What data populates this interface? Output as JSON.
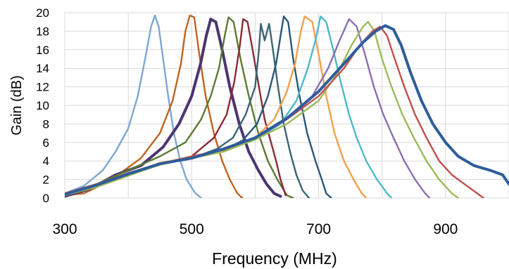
{
  "chart_data": {
    "type": "line",
    "xlabel": "Frequency (MHz)",
    "ylabel": "Gain (dB)",
    "xlim": [
      300,
      1000
    ],
    "ylim": [
      0,
      20
    ],
    "x_ticks": [
      300,
      500,
      700,
      900
    ],
    "y_ticks": [
      0,
      2,
      4,
      6,
      8,
      10,
      12,
      14,
      16,
      18,
      20
    ],
    "grid": "vertical and horizontal, light gray",
    "legend": "none",
    "series": [
      {
        "color": "#7fa6d1",
        "width": 2.4,
        "points": [
          [
            300,
            0.5
          ],
          [
            330,
            1.3
          ],
          [
            360,
            3.0
          ],
          [
            380,
            5.0
          ],
          [
            400,
            7.5
          ],
          [
            415,
            11.0
          ],
          [
            428,
            15.5
          ],
          [
            436,
            18.5
          ],
          [
            442,
            19.7
          ],
          [
            448,
            18.5
          ],
          [
            455,
            15.0
          ],
          [
            463,
            11.0
          ],
          [
            472,
            7.0
          ],
          [
            482,
            4.0
          ],
          [
            492,
            2.0
          ],
          [
            505,
            0.6
          ],
          [
            515,
            0
          ]
        ]
      },
      {
        "color": "#c0631f",
        "width": 2.4,
        "points": [
          [
            300,
            0.3
          ],
          [
            330,
            0.5
          ],
          [
            360,
            1.5
          ],
          [
            390,
            2.8
          ],
          [
            420,
            4.3
          ],
          [
            450,
            7.0
          ],
          [
            470,
            10.5
          ],
          [
            483,
            14.5
          ],
          [
            490,
            18.0
          ],
          [
            497,
            19.7
          ],
          [
            504,
            19.5
          ],
          [
            512,
            15.5
          ],
          [
            522,
            11.0
          ],
          [
            535,
            7.0
          ],
          [
            548,
            4.0
          ],
          [
            560,
            2.0
          ],
          [
            572,
            0.5
          ],
          [
            580,
            0
          ]
        ]
      },
      {
        "color": "#4b3571",
        "width": 4.0,
        "points": [
          [
            300,
            0.2
          ],
          [
            340,
            1.0
          ],
          [
            380,
            2.5
          ],
          [
            420,
            3.5
          ],
          [
            455,
            5.5
          ],
          [
            480,
            8.0
          ],
          [
            500,
            11.0
          ],
          [
            514,
            14.5
          ],
          [
            523,
            17.5
          ],
          [
            530,
            19.3
          ],
          [
            538,
            19.0
          ],
          [
            548,
            16.0
          ],
          [
            560,
            12.0
          ],
          [
            575,
            8.0
          ],
          [
            590,
            5.0
          ],
          [
            605,
            3.0
          ],
          [
            618,
            1.5
          ],
          [
            630,
            0.5
          ],
          [
            640,
            0.2
          ]
        ]
      },
      {
        "color": "#5a7b31",
        "width": 2.4,
        "points": [
          [
            300,
            0.5
          ],
          [
            350,
            1.5
          ],
          [
            400,
            3.0
          ],
          [
            450,
            4.5
          ],
          [
            490,
            6.0
          ],
          [
            515,
            8.5
          ],
          [
            530,
            11.0
          ],
          [
            543,
            14.0
          ],
          [
            552,
            17.5
          ],
          [
            558,
            19.5
          ],
          [
            566,
            19.0
          ],
          [
            577,
            15.0
          ],
          [
            590,
            11.0
          ],
          [
            605,
            7.0
          ],
          [
            620,
            4.0
          ],
          [
            635,
            2.0
          ],
          [
            650,
            0.3
          ],
          [
            660,
            0
          ]
        ]
      },
      {
        "color": "#8b2a35",
        "width": 2.4,
        "points": [
          [
            300,
            0.3
          ],
          [
            350,
            1.2
          ],
          [
            400,
            2.5
          ],
          [
            450,
            3.6
          ],
          [
            500,
            4.5
          ],
          [
            535,
            6.5
          ],
          [
            555,
            9.0
          ],
          [
            567,
            12.5
          ],
          [
            576,
            16.5
          ],
          [
            581,
            19.3
          ],
          [
            588,
            19.0
          ],
          [
            596,
            16.0
          ],
          [
            606,
            12.0
          ],
          [
            615,
            8.5
          ],
          [
            625,
            6.0
          ],
          [
            633,
            4.0
          ],
          [
            640,
            2.0
          ],
          [
            648,
            0.3
          ]
        ]
      },
      {
        "color": "#3b6476",
        "width": 2.4,
        "points": [
          [
            300,
            0.4
          ],
          [
            350,
            1.3
          ],
          [
            400,
            2.5
          ],
          [
            450,
            3.6
          ],
          [
            500,
            4.3
          ],
          [
            540,
            5.3
          ],
          [
            565,
            6.5
          ],
          [
            585,
            9.0
          ],
          [
            600,
            12.0
          ],
          [
            606,
            16.0
          ],
          [
            609,
            18.8
          ],
          [
            615,
            17.0
          ],
          [
            622,
            18.8
          ],
          [
            628,
            16.0
          ],
          [
            636,
            12.0
          ],
          [
            645,
            8.0
          ],
          [
            655,
            5.0
          ],
          [
            665,
            2.5
          ],
          [
            675,
            0.8
          ],
          [
            685,
            0
          ]
        ]
      },
      {
        "color": "#2a567a",
        "width": 2.4,
        "points": [
          [
            300,
            0.5
          ],
          [
            350,
            1.5
          ],
          [
            400,
            2.7
          ],
          [
            450,
            3.7
          ],
          [
            500,
            4.3
          ],
          [
            545,
            5.0
          ],
          [
            580,
            6.2
          ],
          [
            603,
            8.0
          ],
          [
            620,
            11.0
          ],
          [
            633,
            14.5
          ],
          [
            640,
            17.5
          ],
          [
            645,
            19.6
          ],
          [
            652,
            19.0
          ],
          [
            660,
            15.0
          ],
          [
            670,
            11.0
          ],
          [
            682,
            7.0
          ],
          [
            695,
            4.0
          ],
          [
            705,
            2.0
          ],
          [
            712,
            0.5
          ],
          [
            720,
            0
          ]
        ]
      },
      {
        "color": "#f2a04b",
        "width": 2.4,
        "points": [
          [
            300,
            0.4
          ],
          [
            350,
            1.4
          ],
          [
            400,
            2.6
          ],
          [
            450,
            3.8
          ],
          [
            500,
            4.4
          ],
          [
            550,
            5.0
          ],
          [
            600,
            6.5
          ],
          [
            630,
            8.5
          ],
          [
            650,
            11.5
          ],
          [
            663,
            14.5
          ],
          [
            672,
            18.0
          ],
          [
            678,
            19.6
          ],
          [
            690,
            19.0
          ],
          [
            700,
            15.5
          ],
          [
            712,
            11.0
          ],
          [
            725,
            7.0
          ],
          [
            740,
            4.0
          ],
          [
            755,
            2.0
          ],
          [
            768,
            0.5
          ],
          [
            775,
            0
          ]
        ]
      },
      {
        "color": "#4fb8c7",
        "width": 2.4,
        "points": [
          [
            300,
            0.3
          ],
          [
            350,
            1.3
          ],
          [
            400,
            2.4
          ],
          [
            450,
            3.7
          ],
          [
            500,
            4.3
          ],
          [
            550,
            5.2
          ],
          [
            600,
            6.3
          ],
          [
            640,
            8.0
          ],
          [
            665,
            10.5
          ],
          [
            683,
            14.0
          ],
          [
            695,
            17.0
          ],
          [
            703,
            19.6
          ],
          [
            712,
            19.0
          ],
          [
            723,
            16.0
          ],
          [
            735,
            12.5
          ],
          [
            748,
            9.0
          ],
          [
            760,
            6.5
          ],
          [
            775,
            4.0
          ],
          [
            792,
            2.0
          ],
          [
            808,
            0.5
          ],
          [
            815,
            0
          ]
        ]
      },
      {
        "color": "#8a6fb0",
        "width": 2.4,
        "points": [
          [
            300,
            0.4
          ],
          [
            350,
            1.4
          ],
          [
            400,
            2.6
          ],
          [
            450,
            3.6
          ],
          [
            500,
            4.4
          ],
          [
            550,
            5.2
          ],
          [
            600,
            6.4
          ],
          [
            650,
            8.5
          ],
          [
            690,
            11.0
          ],
          [
            715,
            14.0
          ],
          [
            733,
            17.0
          ],
          [
            748,
            19.3
          ],
          [
            760,
            18.5
          ],
          [
            773,
            15.5
          ],
          [
            787,
            12.0
          ],
          [
            802,
            9.0
          ],
          [
            818,
            6.5
          ],
          [
            835,
            4.0
          ],
          [
            852,
            2.0
          ],
          [
            868,
            0.5
          ],
          [
            875,
            0
          ]
        ]
      },
      {
        "color": "#9bbb59",
        "width": 2.4,
        "points": [
          [
            300,
            0.3
          ],
          [
            350,
            1.2
          ],
          [
            400,
            2.4
          ],
          [
            450,
            3.6
          ],
          [
            500,
            4.3
          ],
          [
            550,
            5.0
          ],
          [
            600,
            6.3
          ],
          [
            650,
            8.0
          ],
          [
            700,
            10.5
          ],
          [
            730,
            13.5
          ],
          [
            752,
            16.5
          ],
          [
            770,
            18.5
          ],
          [
            778,
            19.0
          ],
          [
            788,
            18.0
          ],
          [
            800,
            15.0
          ],
          [
            815,
            12.0
          ],
          [
            832,
            9.0
          ],
          [
            850,
            6.5
          ],
          [
            870,
            4.0
          ],
          [
            890,
            2.0
          ],
          [
            910,
            0.5
          ],
          [
            920,
            0
          ]
        ]
      },
      {
        "color": "#c0504d",
        "width": 2.4,
        "points": [
          [
            300,
            0.5
          ],
          [
            350,
            1.5
          ],
          [
            400,
            2.7
          ],
          [
            450,
            3.7
          ],
          [
            500,
            4.5
          ],
          [
            550,
            5.2
          ],
          [
            600,
            6.5
          ],
          [
            650,
            8.5
          ],
          [
            700,
            11.0
          ],
          [
            740,
            14.0
          ],
          [
            765,
            16.5
          ],
          [
            785,
            18.0
          ],
          [
            797,
            18.5
          ],
          [
            808,
            17.5
          ],
          [
            820,
            15.0
          ],
          [
            835,
            12.0
          ],
          [
            852,
            9.0
          ],
          [
            870,
            6.5
          ],
          [
            890,
            4.0
          ],
          [
            910,
            2.5
          ],
          [
            930,
            1.5
          ],
          [
            950,
            0.5
          ],
          [
            960,
            0
          ]
        ]
      },
      {
        "color": "#2f5d9b",
        "width": 4.0,
        "points": [
          [
            300,
            0.4
          ],
          [
            350,
            1.4
          ],
          [
            400,
            2.6
          ],
          [
            450,
            3.7
          ],
          [
            500,
            4.3
          ],
          [
            550,
            5.3
          ],
          [
            600,
            6.5
          ],
          [
            650,
            8.6
          ],
          [
            700,
            11.5
          ],
          [
            740,
            14.5
          ],
          [
            770,
            16.8
          ],
          [
            790,
            18.0
          ],
          [
            805,
            18.6
          ],
          [
            818,
            18.2
          ],
          [
            830,
            16.5
          ],
          [
            845,
            13.5
          ],
          [
            862,
            10.5
          ],
          [
            880,
            8.0
          ],
          [
            900,
            6.0
          ],
          [
            920,
            4.5
          ],
          [
            945,
            3.5
          ],
          [
            970,
            3.0
          ],
          [
            990,
            2.5
          ],
          [
            1000,
            1.5
          ]
        ]
      }
    ]
  }
}
